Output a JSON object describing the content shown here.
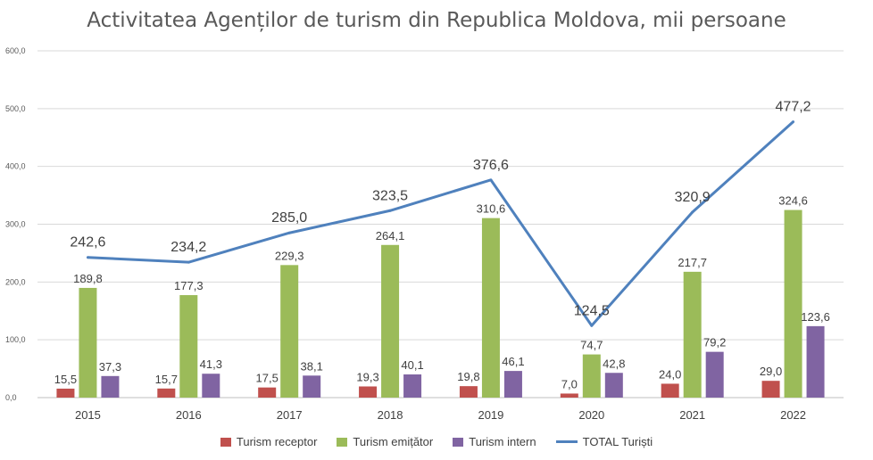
{
  "chart_data": {
    "type": "bar",
    "title": "Activitatea Agenților de turism din Republica Moldova, mii persoane",
    "categories": [
      "2015",
      "2016",
      "2017",
      "2018",
      "2019",
      "2020",
      "2021",
      "2022"
    ],
    "ylim": [
      0,
      600
    ],
    "yticks": [
      "0,0",
      "100,0",
      "200,0",
      "300,0",
      "400,0",
      "500,0",
      "600,0"
    ],
    "grid": true,
    "legend_position": "bottom",
    "series": [
      {
        "name": "Turism receptor",
        "type": "bar",
        "color": "#C0504D",
        "values": [
          15.5,
          15.7,
          17.5,
          19.3,
          19.8,
          7.0,
          24.0,
          29.0
        ],
        "labels": [
          "15,5",
          "15,7",
          "17,5",
          "19,3",
          "19,8",
          "7,0",
          "24,0",
          "29,0"
        ]
      },
      {
        "name": "Turism emițător",
        "type": "bar",
        "color": "#9BBB59",
        "values": [
          189.8,
          177.3,
          229.3,
          264.1,
          310.6,
          74.7,
          217.7,
          324.6
        ],
        "labels": [
          "189,8",
          "177,3",
          "229,3",
          "264,1",
          "310,6",
          "74,7",
          "217,7",
          "324,6"
        ]
      },
      {
        "name": "Turism intern",
        "type": "bar",
        "color": "#8064A2",
        "values": [
          37.3,
          41.3,
          38.1,
          40.1,
          46.1,
          42.8,
          79.2,
          123.6
        ],
        "labels": [
          "37,3",
          "41,3",
          "38,1",
          "40,1",
          "46,1",
          "42,8",
          "79,2",
          "123,6"
        ]
      },
      {
        "name": "TOTAL Turiști",
        "type": "line",
        "color": "#4F81BD",
        "values": [
          242.6,
          234.2,
          285.0,
          323.5,
          376.6,
          124.5,
          320.9,
          477.2
        ],
        "labels": [
          "242,6",
          "234,2",
          "285,0",
          "323,5",
          "376,6",
          "124,5",
          "320,9",
          "477,2"
        ]
      }
    ]
  }
}
